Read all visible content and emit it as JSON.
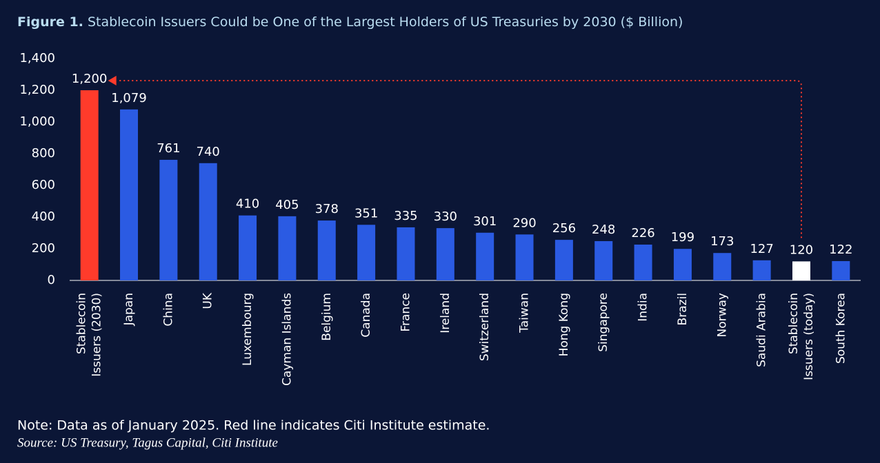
{
  "chart_data": {
    "type": "bar",
    "title_label": "Figure 1.",
    "title": "Stablecoin Issuers Could be One of the Largest Holders of US Treasuries by 2030 ($ Billion)",
    "categories": [
      "Stablecoin\nIssuers (2030)",
      "Japan",
      "China",
      "UK",
      "Luxembourg",
      "Cayman Islands",
      "Belgium",
      "Canada",
      "France",
      "Ireland",
      "Switzerland",
      "Taiwan",
      "Hong Kong",
      "Singapore",
      "India",
      "Brazil",
      "Norway",
      "Saudi Arabia",
      "Stablecoin\nIssuers (today)",
      "South Korea"
    ],
    "values": [
      1200,
      1079,
      761,
      740,
      410,
      405,
      378,
      351,
      335,
      330,
      301,
      290,
      256,
      248,
      226,
      199,
      173,
      127,
      120,
      122
    ],
    "value_labels": [
      "1,200",
      "1,079",
      "761",
      "740",
      "410",
      "405",
      "378",
      "351",
      "335",
      "330",
      "301",
      "290",
      "256",
      "248",
      "226",
      "199",
      "173",
      "127",
      "120",
      "122"
    ],
    "colors": [
      "#ff3b2b",
      "#2b5be3",
      "#2b5be3",
      "#2b5be3",
      "#2b5be3",
      "#2b5be3",
      "#2b5be3",
      "#2b5be3",
      "#2b5be3",
      "#2b5be3",
      "#2b5be3",
      "#2b5be3",
      "#2b5be3",
      "#2b5be3",
      "#2b5be3",
      "#2b5be3",
      "#2b5be3",
      "#2b5be3",
      "#ffffff",
      "#2b5be3"
    ],
    "ylim": [
      0,
      1400
    ],
    "yticks": [
      0,
      200,
      400,
      600,
      800,
      {
        "value": 1000,
        "label": "1,000"
      },
      {
        "value": 1200,
        "label": "1,200"
      },
      {
        "value": 1400,
        "label": "1,400"
      }
    ],
    "note": "Note: Data as of January 2025. Red line indicates Citi Institute estimate.",
    "source": "Source: US Treasury, Tagus Capital, Citi Institute"
  }
}
